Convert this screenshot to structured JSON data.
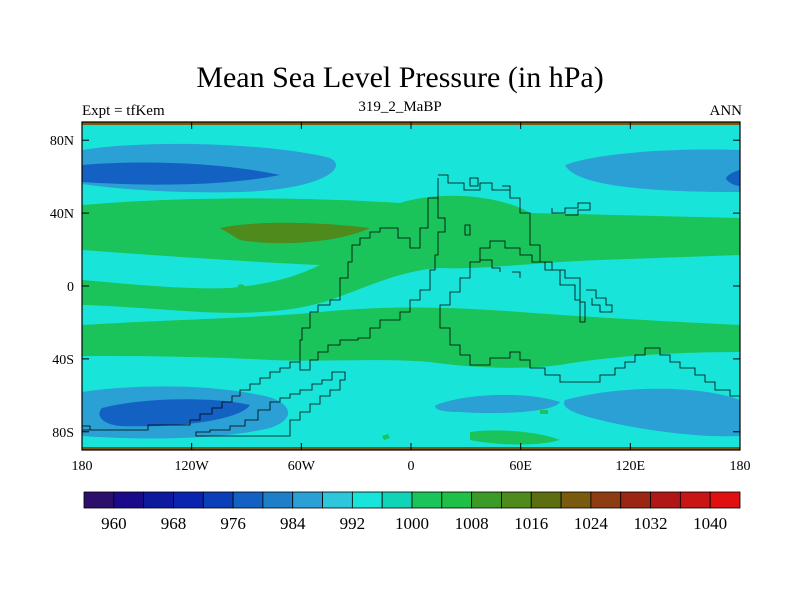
{
  "chart_data": {
    "type": "heatmap",
    "title": "Mean Sea Level Pressure (in hPa)",
    "subtitle_left": "Expt = tfKem",
    "subtitle_center": "319_2_MaBP",
    "subtitle_right": "ANN",
    "x_ticks": [
      "180",
      "120W",
      "60W",
      "0",
      "60E",
      "120E",
      "180"
    ],
    "x_tick_values": [
      -180,
      -120,
      -60,
      0,
      60,
      120,
      180
    ],
    "y_ticks": [
      "80N",
      "40N",
      "0",
      "40S",
      "80S"
    ],
    "y_tick_values": [
      80,
      40,
      0,
      -40,
      -80
    ],
    "xlim": [
      -180,
      180
    ],
    "ylim": [
      -90,
      90
    ],
    "levels": [
      960,
      964,
      968,
      972,
      976,
      980,
      984,
      988,
      992,
      996,
      1000,
      1004,
      1008,
      1012,
      1016,
      1020,
      1024,
      1028,
      1032,
      1036,
      1040
    ],
    "colorbar_labels": [
      "960",
      "968",
      "976",
      "984",
      "992",
      "1000",
      "1008",
      "1016",
      "1024",
      "1032",
      "1040"
    ],
    "colors": [
      "#2c0f6b",
      "#1a0b8a",
      "#0d1a9e",
      "#0a24b0",
      "#0a3fb8",
      "#1461c4",
      "#1e7fc8",
      "#2aa0d4",
      "#2ec6da",
      "#19e4da",
      "#10d4b8",
      "#1ac45a",
      "#20c048",
      "#3c9a28",
      "#4e8a1c",
      "#5c6e10",
      "#7a5a0e",
      "#8e3c12",
      "#9c2614",
      "#b01818",
      "#c81616",
      "#e01010"
    ],
    "fields": {
      "background_range": [
        1000,
        1004
      ],
      "subtropical_high_bands": "1004-1008",
      "north_atlantic_high": "1008-1012",
      "subpolar_lows": "992-996"
    }
  }
}
